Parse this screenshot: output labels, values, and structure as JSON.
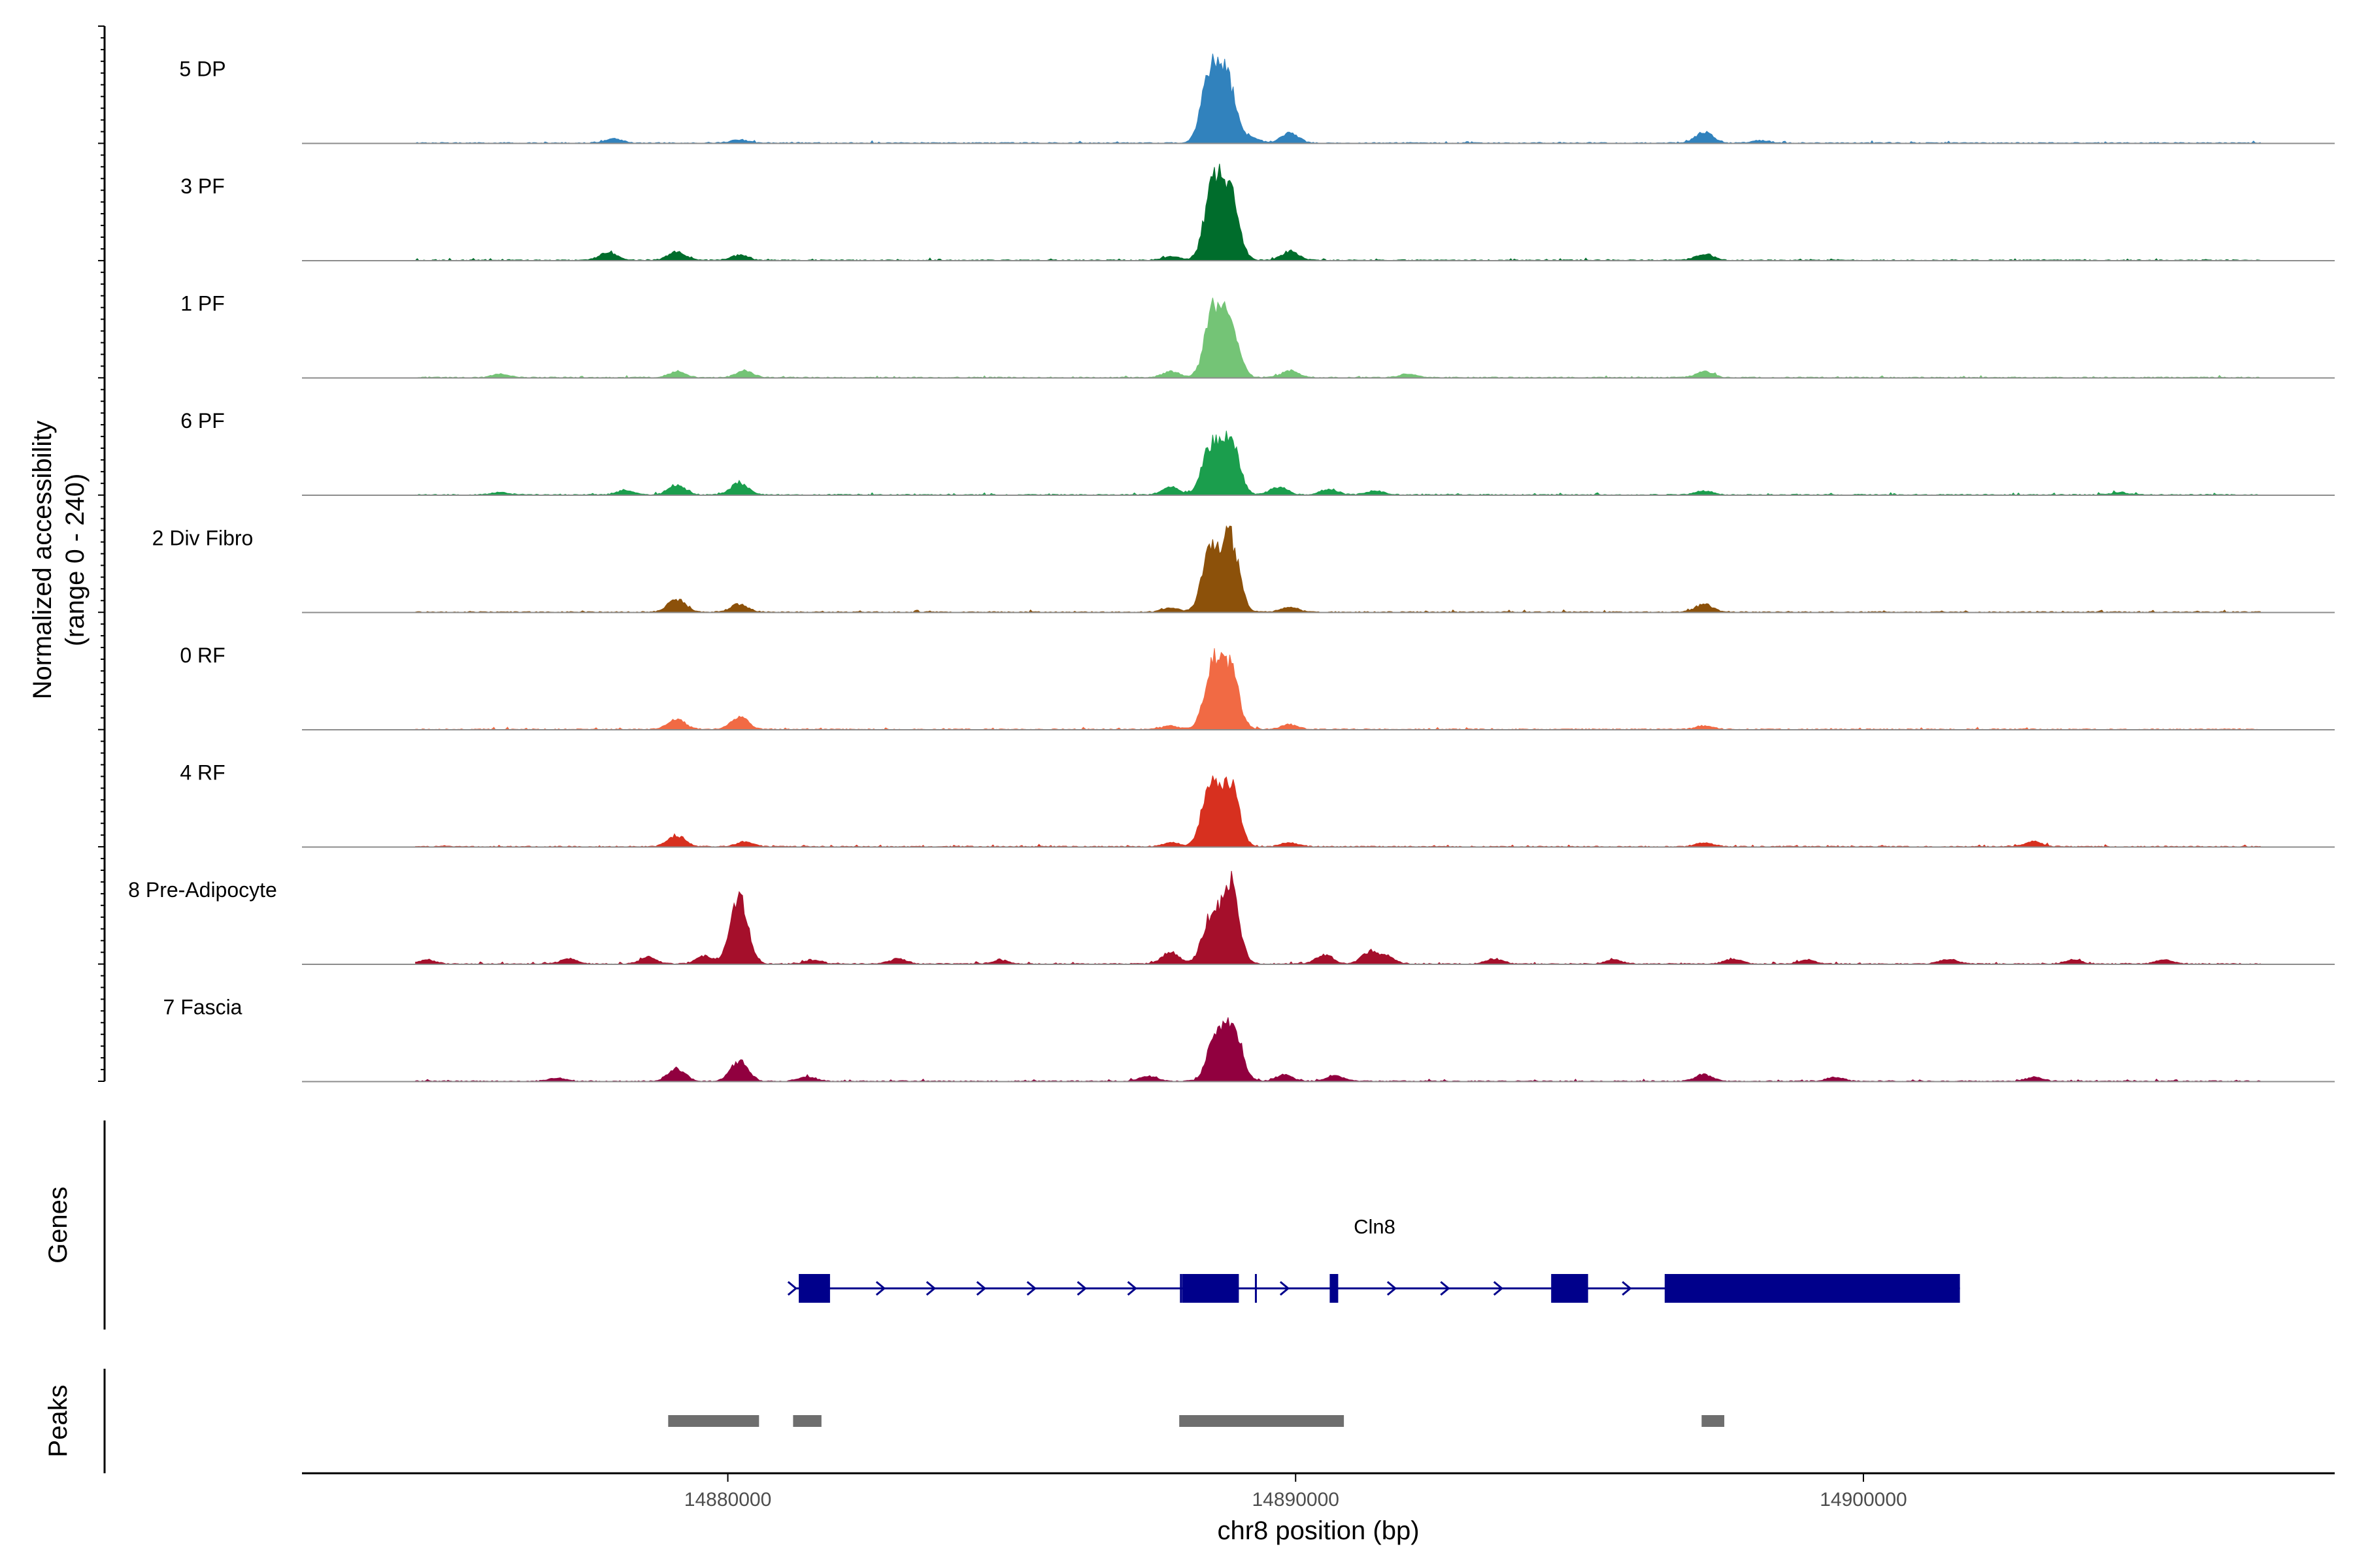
{
  "chart_data": {
    "type": "area",
    "title": "",
    "ylabel_line1": "Normalized accessibility",
    "ylabel_line2": "(range 0 - 240)",
    "y_range": [
      0,
      240
    ],
    "xlabel": "chr8 position (bp)",
    "x_range": [
      14872500,
      14908300
    ],
    "x_ticks": [
      14880000,
      14890000,
      14900000
    ],
    "x_tick_labels": [
      "14880000",
      "14890000",
      "14900000"
    ],
    "tracks": [
      {
        "name": "5 DP",
        "color": "#3182bd",
        "signal_start": 14874500,
        "signal_end": 14907000,
        "peaks": [
          [
            14878000,
            10
          ],
          [
            14880200,
            8
          ],
          [
            14888500,
            175
          ],
          [
            14888800,
            150
          ],
          [
            14889200,
            14
          ],
          [
            14889900,
            25
          ],
          [
            14897200,
            28
          ],
          [
            14898200,
            6
          ]
        ]
      },
      {
        "name": "3 PF",
        "color": "#006d2c",
        "signal_start": 14874500,
        "signal_end": 14907000,
        "peaks": [
          [
            14877900,
            20
          ],
          [
            14879100,
            22
          ],
          [
            14880200,
            12
          ],
          [
            14887800,
            10
          ],
          [
            14888550,
            190
          ],
          [
            14888850,
            160
          ],
          [
            14889900,
            22
          ],
          [
            14897200,
            16
          ]
        ]
      },
      {
        "name": "1 PF",
        "color": "#74c476",
        "signal_start": 14874500,
        "signal_end": 14907000,
        "peaks": [
          [
            14876000,
            8
          ],
          [
            14879100,
            14
          ],
          [
            14880300,
            16
          ],
          [
            14887800,
            15
          ],
          [
            14888550,
            160
          ],
          [
            14888850,
            130
          ],
          [
            14889900,
            16
          ],
          [
            14892000,
            8
          ],
          [
            14897200,
            14
          ]
        ]
      },
      {
        "name": "6 PF",
        "color": "#1b9e4d",
        "signal_start": 14874500,
        "signal_end": 14907000,
        "peaks": [
          [
            14876000,
            6
          ],
          [
            14878200,
            12
          ],
          [
            14879100,
            24
          ],
          [
            14880200,
            30
          ],
          [
            14887800,
            20
          ],
          [
            14888500,
            120
          ],
          [
            14888850,
            140
          ],
          [
            14889700,
            20
          ],
          [
            14890600,
            14
          ],
          [
            14891400,
            10
          ],
          [
            14897200,
            10
          ],
          [
            14904500,
            6
          ]
        ]
      },
      {
        "name": "2 Div Fibro",
        "color": "#8c510a",
        "signal_start": 14874500,
        "signal_end": 14907000,
        "peaks": [
          [
            14879100,
            32
          ],
          [
            14880200,
            20
          ],
          [
            14887800,
            10
          ],
          [
            14888500,
            150
          ],
          [
            14888850,
            180
          ],
          [
            14889900,
            12
          ],
          [
            14897200,
            20
          ]
        ]
      },
      {
        "name": "0 RF",
        "color": "#f16a44",
        "signal_start": 14874500,
        "signal_end": 14907000,
        "peaks": [
          [
            14879100,
            24
          ],
          [
            14880200,
            32
          ],
          [
            14887800,
            8
          ],
          [
            14888550,
            160
          ],
          [
            14888850,
            140
          ],
          [
            14889900,
            12
          ],
          [
            14897200,
            8
          ]
        ]
      },
      {
        "name": "4 RF",
        "color": "#d7301f",
        "signal_start": 14874500,
        "signal_end": 14907000,
        "peaks": [
          [
            14879100,
            28
          ],
          [
            14880300,
            12
          ],
          [
            14887800,
            10
          ],
          [
            14888500,
            150
          ],
          [
            14888850,
            150
          ],
          [
            14889900,
            10
          ],
          [
            14897200,
            10
          ],
          [
            14903000,
            12
          ]
        ]
      },
      {
        "name": "8 Pre-Adipocyte",
        "color": "#a50f2b",
        "signal_start": 14874500,
        "signal_end": 14907000,
        "peaks": [
          [
            14874700,
            10
          ],
          [
            14877200,
            12
          ],
          [
            14878600,
            16
          ],
          [
            14879600,
            20
          ],
          [
            14880200,
            165
          ],
          [
            14881500,
            10
          ],
          [
            14883000,
            12
          ],
          [
            14884800,
            10
          ],
          [
            14887800,
            30
          ],
          [
            14888500,
            110
          ],
          [
            14888850,
            200
          ],
          [
            14890500,
            22
          ],
          [
            14891300,
            28
          ],
          [
            14891600,
            18
          ],
          [
            14893500,
            12
          ],
          [
            14895600,
            10
          ],
          [
            14897700,
            12
          ],
          [
            14899000,
            10
          ],
          [
            14901500,
            12
          ],
          [
            14903700,
            10
          ],
          [
            14905300,
            10
          ]
        ]
      },
      {
        "name": "7 Fascia",
        "color": "#91003f",
        "signal_start": 14874500,
        "signal_end": 14907000,
        "peaks": [
          [
            14877000,
            8
          ],
          [
            14879100,
            32
          ],
          [
            14880200,
            50
          ],
          [
            14881400,
            10
          ],
          [
            14887400,
            12
          ],
          [
            14888600,
            110
          ],
          [
            14888900,
            135
          ],
          [
            14889800,
            15
          ],
          [
            14890700,
            14
          ],
          [
            14897200,
            16
          ],
          [
            14899500,
            10
          ],
          [
            14903000,
            10
          ]
        ]
      }
    ],
    "genes_track_label": "Genes",
    "gene": {
      "name": "Cln8",
      "color": "#00008b",
      "strand": "+",
      "start": 14881200,
      "end": 14901700,
      "exons": [
        [
          14881250,
          14881800
        ],
        [
          14888000,
          14889000
        ],
        [
          14890600,
          14890750
        ],
        [
          14894500,
          14895150
        ],
        [
          14896500,
          14901700
        ]
      ],
      "small_marks": [
        14887980,
        14889300
      ]
    },
    "peaks_track_label": "Peaks",
    "peak_regions": [
      [
        14878950,
        14880550
      ],
      [
        14881150,
        14881650
      ],
      [
        14887950,
        14890850
      ],
      [
        14897150,
        14897550
      ]
    ],
    "peak_color": "#6e6e6e"
  }
}
